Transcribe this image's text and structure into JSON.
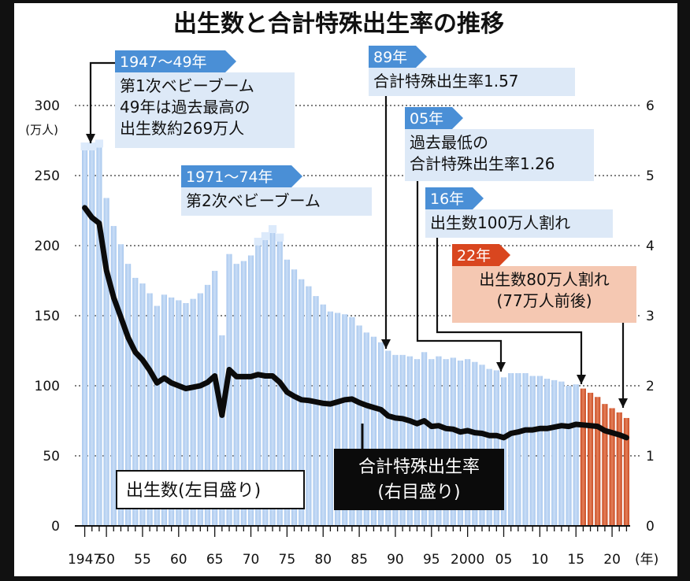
{
  "title": "出生数と合計特殊出生率の推移",
  "chart_data": {
    "type": "bar+line",
    "left_axis": {
      "unit_line1": "(万人)",
      "ticks": [
        0,
        50,
        100,
        150,
        200,
        250,
        300
      ],
      "ylim": [
        0,
        300
      ]
    },
    "right_axis": {
      "ticks": [
        0,
        1,
        2,
        3,
        4,
        5,
        6
      ],
      "ylim": [
        0,
        6
      ]
    },
    "x_axis": {
      "unit": "(年)",
      "labels": [
        {
          "year": 1947,
          "text": "1947"
        },
        {
          "year": 1950,
          "text": "50"
        },
        {
          "year": 1955,
          "text": "55"
        },
        {
          "year": 1960,
          "text": "60"
        },
        {
          "year": 1965,
          "text": "65"
        },
        {
          "year": 1970,
          "text": "70"
        },
        {
          "year": 1975,
          "text": "75"
        },
        {
          "year": 1980,
          "text": "80"
        },
        {
          "year": 1985,
          "text": "85"
        },
        {
          "year": 1990,
          "text": "90"
        },
        {
          "year": 1995,
          "text": "95"
        },
        {
          "year": 2000,
          "text": "2000"
        },
        {
          "year": 2005,
          "text": "05"
        },
        {
          "year": 2010,
          "text": "10"
        },
        {
          "year": 2015,
          "text": "15"
        },
        {
          "year": 2020,
          "text": "20"
        }
      ]
    },
    "series": [
      {
        "name": "出生数(左目盛り)",
        "type": "bar",
        "unit": "万人",
        "x": [
          1947,
          1948,
          1949,
          1950,
          1951,
          1952,
          1953,
          1954,
          1955,
          1956,
          1957,
          1958,
          1959,
          1960,
          1961,
          1962,
          1963,
          1964,
          1965,
          1966,
          1967,
          1968,
          1969,
          1970,
          1971,
          1972,
          1973,
          1974,
          1975,
          1976,
          1977,
          1978,
          1979,
          1980,
          1981,
          1982,
          1983,
          1984,
          1985,
          1986,
          1987,
          1988,
          1989,
          1990,
          1991,
          1992,
          1993,
          1994,
          1995,
          1996,
          1997,
          1998,
          1999,
          2000,
          2001,
          2002,
          2003,
          2004,
          2005,
          2006,
          2007,
          2008,
          2009,
          2010,
          2011,
          2012,
          2013,
          2014,
          2015,
          2016,
          2017,
          2018,
          2019,
          2020,
          2021,
          2022
        ],
        "values": [
          268,
          268,
          270,
          234,
          214,
          201,
          187,
          177,
          173,
          166,
          157,
          165,
          163,
          161,
          159,
          162,
          166,
          172,
          182,
          136,
          194,
          187,
          189,
          193,
          200,
          204,
          209,
          203,
          190,
          183,
          176,
          171,
          164,
          158,
          153,
          152,
          151,
          149,
          143,
          138,
          135,
          131,
          125,
          122,
          122,
          121,
          119,
          124,
          119,
          121,
          119,
          120,
          118,
          119,
          117,
          115,
          112,
          111,
          106,
          109,
          109,
          109,
          107,
          107,
          105,
          104,
          103,
          100,
          101,
          98,
          95,
          92,
          87,
          84,
          81,
          77
        ],
        "highlight": {
          "1947-1949": "baby_boom_1",
          "1971-1974": "baby_boom_2",
          "2016-2022": "recent"
        }
      },
      {
        "name": "合計特殊出生率(右目盛り)",
        "type": "line",
        "x": [
          1947,
          1948,
          1949,
          1950,
          1951,
          1952,
          1953,
          1954,
          1955,
          1956,
          1957,
          1958,
          1959,
          1960,
          1961,
          1962,
          1963,
          1964,
          1965,
          1966,
          1967,
          1968,
          1969,
          1970,
          1971,
          1972,
          1973,
          1974,
          1975,
          1976,
          1977,
          1978,
          1979,
          1980,
          1981,
          1982,
          1983,
          1984,
          1985,
          1986,
          1987,
          1988,
          1989,
          1990,
          1991,
          1992,
          1993,
          1994,
          1995,
          1996,
          1997,
          1998,
          1999,
          2000,
          2001,
          2002,
          2003,
          2004,
          2005,
          2006,
          2007,
          2008,
          2009,
          2010,
          2011,
          2012,
          2013,
          2014,
          2015,
          2016,
          2017,
          2018,
          2019,
          2020,
          2021,
          2022
        ],
        "values": [
          4.54,
          4.4,
          4.32,
          3.65,
          3.26,
          2.98,
          2.69,
          2.48,
          2.37,
          2.22,
          2.04,
          2.11,
          2.04,
          2.0,
          1.96,
          1.98,
          2.0,
          2.05,
          2.14,
          1.58,
          2.23,
          2.13,
          2.13,
          2.13,
          2.16,
          2.14,
          2.14,
          2.05,
          1.91,
          1.85,
          1.8,
          1.79,
          1.77,
          1.75,
          1.74,
          1.77,
          1.8,
          1.81,
          1.76,
          1.72,
          1.69,
          1.66,
          1.57,
          1.54,
          1.53,
          1.5,
          1.46,
          1.5,
          1.42,
          1.43,
          1.39,
          1.38,
          1.34,
          1.36,
          1.33,
          1.32,
          1.29,
          1.29,
          1.26,
          1.32,
          1.34,
          1.37,
          1.37,
          1.39,
          1.39,
          1.41,
          1.43,
          1.42,
          1.45,
          1.44,
          1.43,
          1.42,
          1.36,
          1.33,
          1.3,
          1.26
        ]
      }
    ],
    "legend": {
      "bars": "出生数(左目盛り)",
      "line_line1": "合計特殊出生率",
      "line_line2": "(右目盛り)"
    },
    "annotations": [
      {
        "tab": "1947〜49年",
        "lines": [
          "第1次ベビーブーム",
          "49年は過去最高の",
          "出生数約269万人"
        ],
        "target_year": 1948
      },
      {
        "tab": "1971〜74年",
        "lines": [
          "第2次ベビーブーム"
        ]
      },
      {
        "tab": "89年",
        "lines": [
          "合計特殊出生率1.57"
        ],
        "target_year": 1989
      },
      {
        "tab": "05年",
        "lines": [
          "過去最低の",
          "合計特殊出生率1.26"
        ],
        "target_year": 2005
      },
      {
        "tab": "16年",
        "lines": [
          "出生数100万人割れ"
        ],
        "target_year": 2016
      },
      {
        "tab": "22年",
        "lines": [
          "出生数80万人割れ",
          "(77万人前後)"
        ],
        "target_year": 2022
      }
    ]
  }
}
